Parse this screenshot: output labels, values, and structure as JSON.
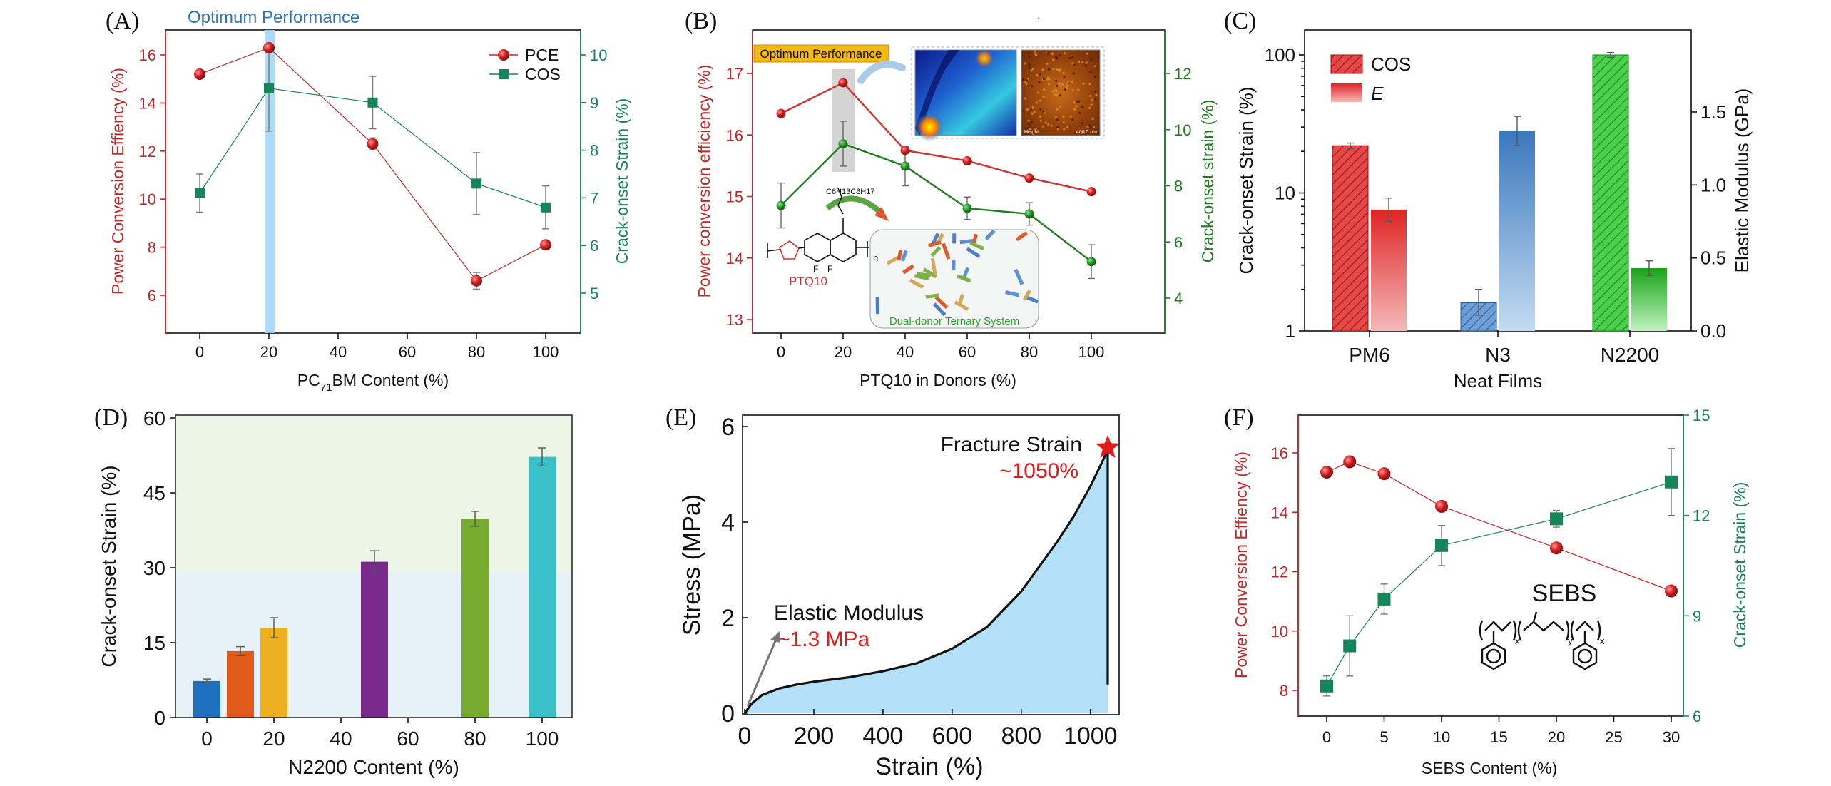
{
  "colors": {
    "red": "#c62828",
    "green": "#17855a",
    "dkgreen": "#1f7f1f",
    "blue": "#3f79b8",
    "black": "#111111",
    "band": "#9fd3f5",
    "accent": "#e01b1b",
    "ltblue": "#b3e0f7"
  },
  "panels": {
    "A": {
      "label": "(A)",
      "banner": "Optimum Performance",
      "xlabel_pre": "PC",
      "xlabel_sub": "71",
      "xlabel_post": "BM Content (%)",
      "ylabel_left": "Power Conversion Effiency (%)",
      "ylabel_right": "Crack-onset Strain (%)",
      "x": [
        0,
        20,
        50,
        80,
        100
      ],
      "pce": [
        15.2,
        16.3,
        12.3,
        6.6,
        8.1
      ],
      "pce_err": [
        0,
        0,
        0.25,
        0.35,
        0
      ],
      "cos": [
        7.1,
        9.3,
        9.0,
        7.3,
        6.8
      ],
      "cos_err": [
        0.4,
        0.9,
        0.55,
        0.65,
        0.45
      ],
      "xticks": [
        "0",
        "20",
        "40",
        "60",
        "80",
        "100"
      ],
      "yticks_left": [
        "6",
        "8",
        "10",
        "12",
        "14",
        "16"
      ],
      "yticks_right": [
        "5",
        "6",
        "7",
        "8",
        "9",
        "10"
      ],
      "legend": [
        "PCE",
        "COS"
      ]
    },
    "B": {
      "label": "(B)",
      "banner": "Optimum Performance",
      "xlabel": "PTQ10 in Donors (%)",
      "ylabel_left": "Power conversion efficiency (%)",
      "ylabel_right": "Crack-onset strain (%)",
      "x": [
        0,
        20,
        40,
        60,
        80,
        100
      ],
      "pce": [
        16.35,
        16.85,
        15.75,
        15.58,
        15.3,
        15.08
      ],
      "cos": [
        7.3,
        9.5,
        8.7,
        7.2,
        7.0,
        5.3
      ],
      "cos_err": [
        0.8,
        0.8,
        0.7,
        0.4,
        0.4,
        0.6
      ],
      "xticks": [
        "0",
        "20",
        "40",
        "60",
        "80",
        "100"
      ],
      "yticks_left": [
        "13",
        "14",
        "15",
        "16",
        "17"
      ],
      "yticks_right": [
        "4",
        "6",
        "8",
        "10",
        "12"
      ],
      "molecule": "PTQ10",
      "chain": "C6H13C8H17",
      "n": "n",
      "F": "F",
      "system": "Dual-donor Ternary System",
      "afm_left": "Height",
      "afm_right": "400.0 nm"
    },
    "C": {
      "label": "(C)",
      "xlabel": "Neat Films",
      "ylabel_left": "Crack-onset Strain (%)",
      "ylabel_right": "Elastic Modulus (GPa)",
      "categories": [
        "PM6",
        "N3",
        "N2200"
      ],
      "cos": [
        22,
        1.6,
        100
      ],
      "cos_err_up": [
        1,
        0.4,
        4
      ],
      "cos_err_dn": [
        1,
        0.3,
        4
      ],
      "modulus": [
        0.83,
        1.37,
        0.43
      ],
      "modulus_err": [
        0.08,
        0.1,
        0.05
      ],
      "yticks_left": [
        "1",
        "10",
        "100"
      ],
      "yticks_right": [
        "0.0",
        "0.5",
        "1.0",
        "1.5"
      ],
      "legend": [
        "COS",
        "E"
      ]
    },
    "D": {
      "label": "(D)",
      "xlabel": "N2200 Content (%)",
      "ylabel": "Crack-onset Strain (%)",
      "x": [
        0,
        10,
        20,
        50,
        80,
        100
      ],
      "values": [
        7.3,
        13.3,
        18.0,
        31.2,
        39.8,
        52.2
      ],
      "err": [
        0.4,
        0.9,
        2.0,
        2.2,
        1.5,
        1.8
      ],
      "bar_colors": [
        "#1f6fbf",
        "#e05a1a",
        "#eeb020",
        "#7a2a8c",
        "#77ab30",
        "#3ac0c8"
      ],
      "xticks": [
        "0",
        "20",
        "40",
        "60",
        "80",
        "100"
      ],
      "yticks": [
        "0",
        "15",
        "30",
        "45",
        "60"
      ]
    },
    "E": {
      "label": "(E)",
      "xlabel": "Strain (%)",
      "ylabel": "Stress (MPa)",
      "curve": [
        [
          0,
          0
        ],
        [
          20,
          0.2
        ],
        [
          50,
          0.38
        ],
        [
          100,
          0.52
        ],
        [
          150,
          0.6
        ],
        [
          200,
          0.66
        ],
        [
          300,
          0.75
        ],
        [
          400,
          0.88
        ],
        [
          500,
          1.05
        ],
        [
          600,
          1.35
        ],
        [
          700,
          1.8
        ],
        [
          800,
          2.55
        ],
        [
          900,
          3.55
        ],
        [
          950,
          4.1
        ],
        [
          1000,
          4.75
        ],
        [
          1050,
          5.5
        ]
      ],
      "xticks": [
        "0",
        "200",
        "400",
        "600",
        "800",
        "1000"
      ],
      "yticks": [
        "0",
        "2",
        "4",
        "6"
      ],
      "fracture_title": "Fracture Strain",
      "fracture_value": "~1050%",
      "modulus_title": "Elastic Modulus",
      "modulus_value": "~1.3 MPa"
    },
    "F": {
      "label": "(F)",
      "xlabel": "SEBS Content (%)",
      "ylabel_left": "Power Conversion Effiency (%)",
      "ylabel_right": "Crack-onset Strain (%)",
      "x": [
        0,
        2,
        5,
        10,
        20,
        30
      ],
      "pce": [
        15.35,
        15.7,
        15.3,
        14.2,
        12.8,
        11.35
      ],
      "cos": [
        6.9,
        8.1,
        9.5,
        11.1,
        11.9,
        13.0
      ],
      "cos_err": [
        0.3,
        0.9,
        0.45,
        0.6,
        0.25,
        1.0
      ],
      "xticks": [
        "0",
        "5",
        "10",
        "15",
        "20",
        "25",
        "30"
      ],
      "yticks_left": [
        "8",
        "10",
        "12",
        "14",
        "16"
      ],
      "yticks_right": [
        "6",
        "9",
        "12",
        "15"
      ],
      "polymer": "SEBS",
      "sub_x": "x",
      "sub_y": "y"
    }
  }
}
